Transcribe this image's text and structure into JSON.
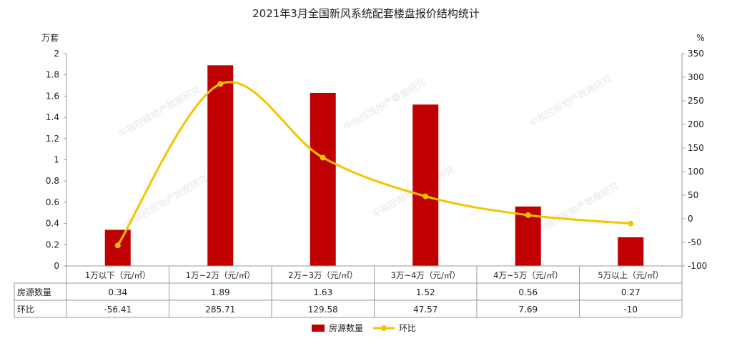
{
  "chart_data": {
    "type": "bar",
    "title": "2021年3月全国新风系统配套楼盘报价结构统计",
    "y_left_unit": "万套",
    "y_right_unit": "%",
    "ylim_left": [
      0,
      2
    ],
    "ylim_right": [
      -100,
      350
    ],
    "yticks_left": [
      "0",
      "0.2",
      "0.4",
      "0.6",
      "0.8",
      "1",
      "1.2",
      "1.4",
      "1.6",
      "1.8",
      "2"
    ],
    "yticks_right": [
      "-100",
      "-50",
      "0",
      "50",
      "100",
      "150",
      "200",
      "250",
      "300",
      "350"
    ],
    "categories": [
      "1万以下（元/㎡）",
      "1万~2万（元/㎡）",
      "2万~3万（元/㎡）",
      "3万~4万（元/㎡）",
      "4万~5万（元/㎡）",
      "5万以上（元/㎡）"
    ],
    "series": [
      {
        "name": "房源数量",
        "type": "bar",
        "axis": "left",
        "color": "#c00000",
        "values": [
          0.34,
          1.89,
          1.63,
          1.52,
          0.56,
          0.27
        ],
        "labels": [
          "0.34",
          "1.89",
          "1.63",
          "1.52",
          "0.56",
          "0.27"
        ]
      },
      {
        "name": "环比",
        "type": "line",
        "axis": "right",
        "color": "#f5c400",
        "values": [
          -56.41,
          285.71,
          129.58,
          47.57,
          7.69,
          -10
        ],
        "labels": [
          "-56.41",
          "285.71",
          "129.58",
          "47.57",
          "7.69",
          "-10"
        ]
      }
    ],
    "watermark": "中指控股地产数据研究",
    "grid": false,
    "legend_position": "bottom"
  }
}
